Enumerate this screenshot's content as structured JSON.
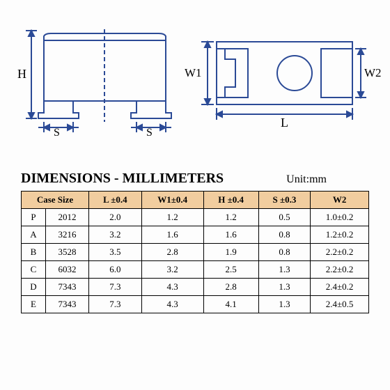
{
  "diagram": {
    "stroke": "#2b4a96",
    "labels": {
      "H": "H",
      "S": "S",
      "W1": "W1",
      "W2": "W2",
      "L": "L"
    }
  },
  "title": "DIMENSIONS - MILLIMETERS",
  "unit": "Unit:mm",
  "table": {
    "header_bg": "#f1cd9f",
    "headers": [
      "Case Size",
      "L ±0.4",
      "W1±0.4",
      "H ±0.4",
      "S ±0.3",
      "W2"
    ],
    "rows": [
      [
        "P",
        "2012",
        "2.0",
        "1.2",
        "1.2",
        "0.5",
        "1.0±0.2"
      ],
      [
        "A",
        "3216",
        "3.2",
        "1.6",
        "1.6",
        "0.8",
        "1.2±0.2"
      ],
      [
        "B",
        "3528",
        "3.5",
        "2.8",
        "1.9",
        "0.8",
        "2.2±0.2"
      ],
      [
        "C",
        "6032",
        "6.0",
        "3.2",
        "2.5",
        "1.3",
        "2.2±0.2"
      ],
      [
        "D",
        "7343",
        "7.3",
        "4.3",
        "2.8",
        "1.3",
        "2.4±0.2"
      ],
      [
        "E",
        "7343",
        "7.3",
        "4.3",
        "4.1",
        "1.3",
        "2.4±0.5"
      ]
    ]
  }
}
